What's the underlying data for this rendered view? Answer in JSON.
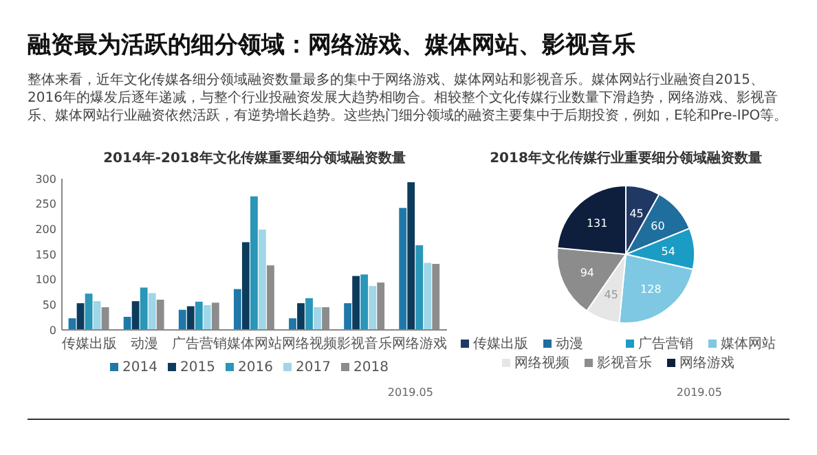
{
  "chart_data": [
    {
      "type": "other",
      "title": "融资最为活跃的细分领域：网络游戏、媒体网站、影视音乐",
      "annotations": [
        "整体来看，近年文化传媒各细分领域融资数量最多的集中于网络游戏、媒体网站和影视音乐。媒体网站行业融资自2015、2016年的爆发后逐年递减，与整个行业投融资发展大趋势相吻合。相较整个文化传媒行业数量下滑趋势，网络游戏、影视音乐、媒体网站行业融资依然活跃，有逆势增长趋势。这些热门细分领域的融资主要集中于后期投资，例如，E轮和Pre-IPO等。"
      ]
    },
    {
      "type": "bar",
      "title": "2014年-2018年文化传媒重要细分领域融资数量",
      "categories": [
        "传媒出版",
        "动漫",
        "广告营销",
        "媒体网站",
        "网络视频",
        "影视音乐",
        "网络游戏"
      ],
      "series": [
        {
          "name": "2014",
          "color": "#1f78a8",
          "values": [
            23,
            26,
            40,
            81,
            23,
            53,
            242
          ]
        },
        {
          "name": "2015",
          "color": "#0d3b5c",
          "values": [
            53,
            57,
            47,
            174,
            53,
            107,
            293
          ]
        },
        {
          "name": "2016",
          "color": "#2a96b8",
          "values": [
            72,
            84,
            56,
            265,
            63,
            110,
            168
          ]
        },
        {
          "name": "2017",
          "color": "#9fd6e8",
          "values": [
            57,
            73,
            49,
            199,
            45,
            87,
            133
          ]
        },
        {
          "name": "2018",
          "color": "#8c8c8c",
          "values": [
            45,
            60,
            54,
            128,
            45,
            94,
            131
          ]
        }
      ],
      "ylim": [
        0,
        300
      ],
      "yticks": [
        0,
        50,
        100,
        150,
        200,
        250,
        300
      ],
      "grid": false,
      "legend": "bottom",
      "annotations": [
        "2019.05"
      ]
    },
    {
      "type": "pie",
      "title": "2018年文化传媒行业重要细分领域融资数量",
      "categories": [
        "传媒出版",
        "动漫",
        "广告营销",
        "媒体网站",
        "网络视频",
        "影视音乐",
        "网络游戏"
      ],
      "values": [
        45,
        60,
        54,
        128,
        45,
        94,
        131
      ],
      "colors": [
        "#1f3864",
        "#1f6e9e",
        "#1a9cc4",
        "#7ec8e3",
        "#e6e6e6",
        "#8c8c8c",
        "#0d1f3c"
      ],
      "data_labels": true,
      "legend": "bottom",
      "annotations": [
        "2019.05"
      ]
    }
  ]
}
